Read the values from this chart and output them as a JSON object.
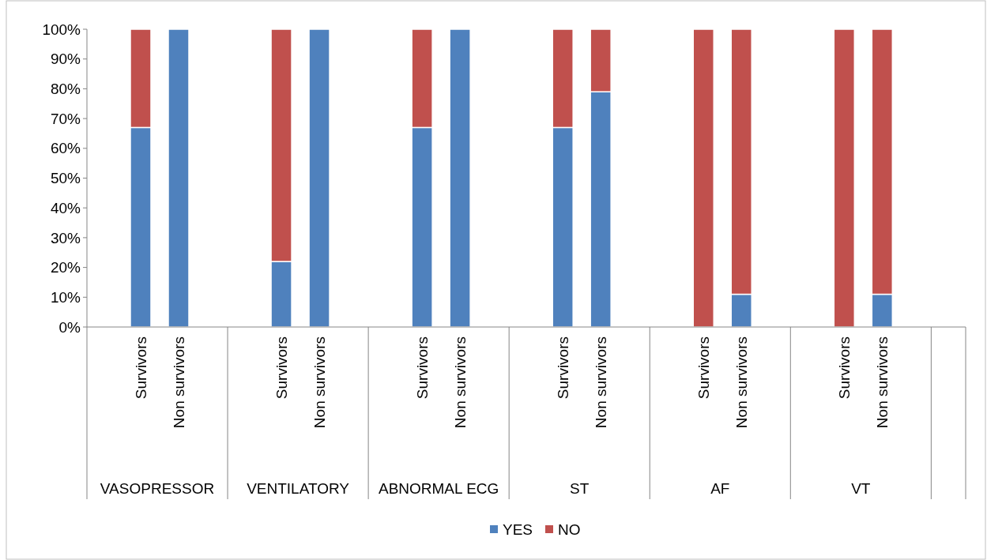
{
  "chart_data": {
    "type": "bar",
    "stacked": true,
    "categories": [
      "Survivors",
      "Non survivors",
      "Survivors",
      "Non survivors",
      "Survivors",
      "Non survivors",
      "Survivors",
      "Non survivors",
      "Survivors",
      "Non survivors",
      "Survivors",
      "Non survivors"
    ],
    "annotations": [
      "VASOPRESSOR",
      "VENTILATORY",
      "ABNORMAL ECG",
      "ST",
      "AF",
      "VT"
    ],
    "series": [
      {
        "name": "YES",
        "color": "#4f81bd",
        "values": [
          67,
          100,
          22,
          100,
          67,
          100,
          67,
          79,
          0,
          11,
          0,
          11
        ]
      },
      {
        "name": "NO",
        "color": "#c0504d",
        "values": [
          33,
          0,
          78,
          0,
          33,
          0,
          33,
          21,
          100,
          89,
          100,
          89
        ]
      }
    ],
    "ylim": [
      0,
      100
    ],
    "yticks": [
      {
        "value": 0,
        "label": "0%"
      },
      {
        "value": 10,
        "label": "10%"
      },
      {
        "value": 20,
        "label": "20%"
      },
      {
        "value": 30,
        "label": "30%"
      },
      {
        "value": 40,
        "label": "40%"
      },
      {
        "value": 50,
        "label": "50%"
      },
      {
        "value": 60,
        "label": "60%"
      },
      {
        "value": 70,
        "label": "70%"
      },
      {
        "value": 80,
        "label": "80%"
      },
      {
        "value": 90,
        "label": "90%"
      },
      {
        "value": 100,
        "label": "100%"
      }
    ],
    "legend": "bottom"
  }
}
